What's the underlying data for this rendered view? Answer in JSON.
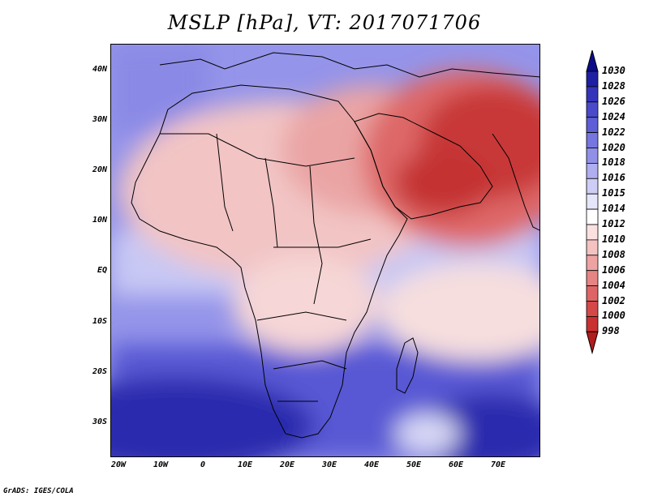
{
  "title": "MSLP [hPa], VT: 2017071706",
  "lat_labels": [
    "40N",
    "30N",
    "20N",
    "10N",
    "EQ",
    "10S",
    "20S",
    "30S"
  ],
  "lon_labels": [
    "20W",
    "10W",
    "0",
    "10E",
    "20E",
    "30E",
    "40E",
    "50E",
    "60E",
    "70E"
  ],
  "colorbar": {
    "labels": [
      "1030",
      "1028",
      "1026",
      "1024",
      "1022",
      "1020",
      "1018",
      "1016",
      "1015",
      "1014",
      "1012",
      "1010",
      "1008",
      "1006",
      "1004",
      "1002",
      "1000",
      "998"
    ],
    "colors": [
      "#0c0c8a",
      "#1f1fa3",
      "#3434bb",
      "#4a4acb",
      "#5e5ed6",
      "#7676e0",
      "#9090e8",
      "#aeaef0",
      "#cdcdf6",
      "#e6e6fb",
      "#ffffff",
      "#fbe0e0",
      "#f5c2c2",
      "#eea3a3",
      "#e68484",
      "#de6565",
      "#d44848",
      "#c93030",
      "#b21c1c"
    ]
  },
  "credit": "GrADS: IGES/COLA"
}
